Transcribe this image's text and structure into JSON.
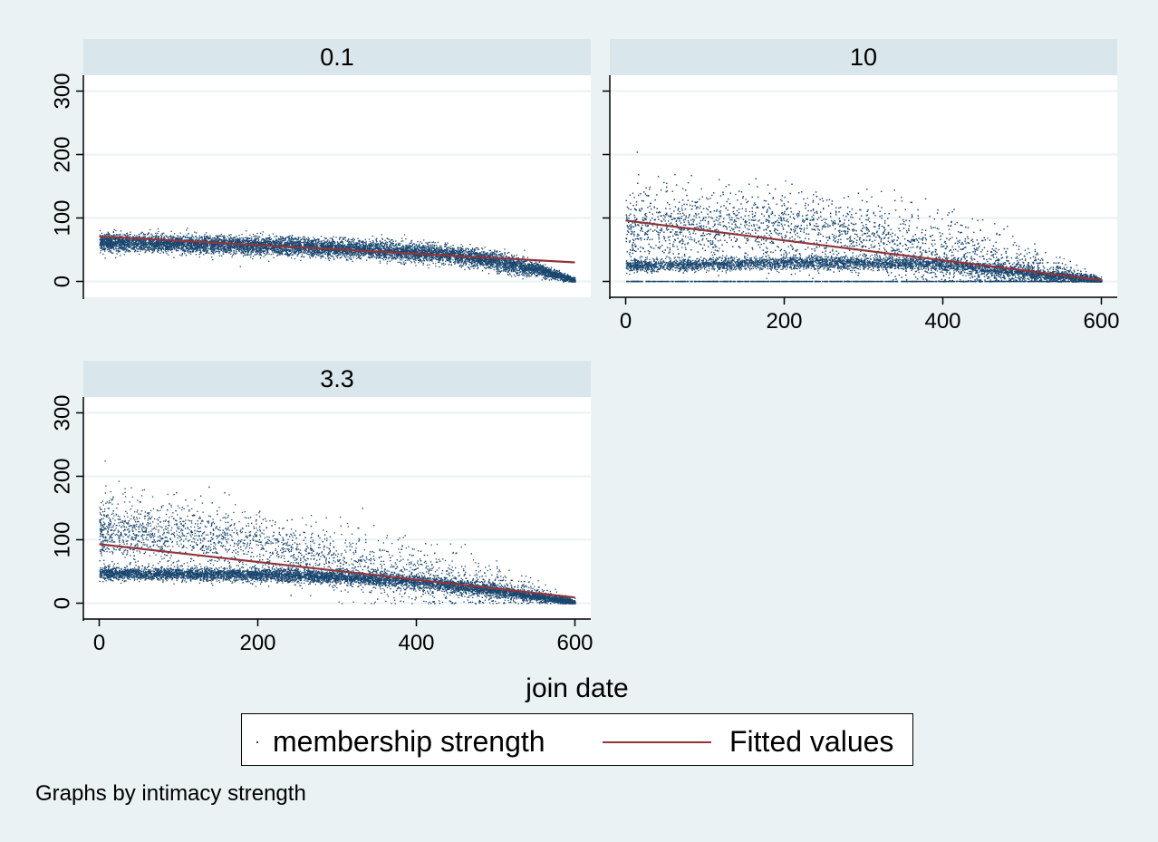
{
  "chart_data": {
    "type": "scatter",
    "xlabel": "join date",
    "ylabel": "",
    "xlim": [
      -20,
      620
    ],
    "ylim": [
      -25,
      325
    ],
    "x_ticks": [
      "0",
      "200",
      "400",
      "600"
    ],
    "y_ticks": [
      "0",
      "100",
      "200",
      "300"
    ],
    "grid": true,
    "legend": {
      "placement": "bottom",
      "entries": [
        "membership strength",
        "Fitted values"
      ]
    },
    "note": "Graphs by intimacy strength",
    "panels": [
      {
        "title": "0.1",
        "fitted_values": {
          "x": [
            0,
            600
          ],
          "y": [
            71,
            30
          ]
        },
        "scatter_profile": {
          "x": [
            0,
            100,
            200,
            300,
            400,
            450,
            500,
            550,
            600
          ],
          "y_center": [
            62,
            60,
            57,
            53,
            47,
            42,
            33,
            20,
            2
          ],
          "y_spread": 7
        }
      },
      {
        "title": "10",
        "fitted_values": {
          "x": [
            0,
            600
          ],
          "y": [
            96,
            2
          ]
        },
        "scatter_profile": {
          "x": [
            0,
            100,
            200,
            300,
            400,
            500,
            600
          ],
          "upper_cloud_center": [
            85,
            90,
            85,
            70,
            45,
            20,
            2
          ],
          "lower_band_center": [
            25,
            28,
            30,
            30,
            28,
            15,
            2
          ],
          "y_max": 245,
          "floor_value": 0
        }
      },
      {
        "title": "3.3",
        "fitted_values": {
          "x": [
            0,
            600
          ],
          "y": [
            93,
            9
          ]
        },
        "scatter_profile": {
          "x": [
            0,
            100,
            200,
            300,
            400,
            500,
            600
          ],
          "upper_cloud_center": [
            115,
            110,
            90,
            65,
            42,
            25,
            2
          ],
          "lower_band_center": [
            48,
            47,
            45,
            42,
            35,
            20,
            2
          ],
          "y_max": 225
        }
      }
    ],
    "colors": {
      "background": "#eaf2f3",
      "strip": "#d9e6eb",
      "plot": "#ffffff",
      "grid": "#eaf2f3",
      "points": "#1a476f",
      "fit_line": "#90353b"
    }
  }
}
